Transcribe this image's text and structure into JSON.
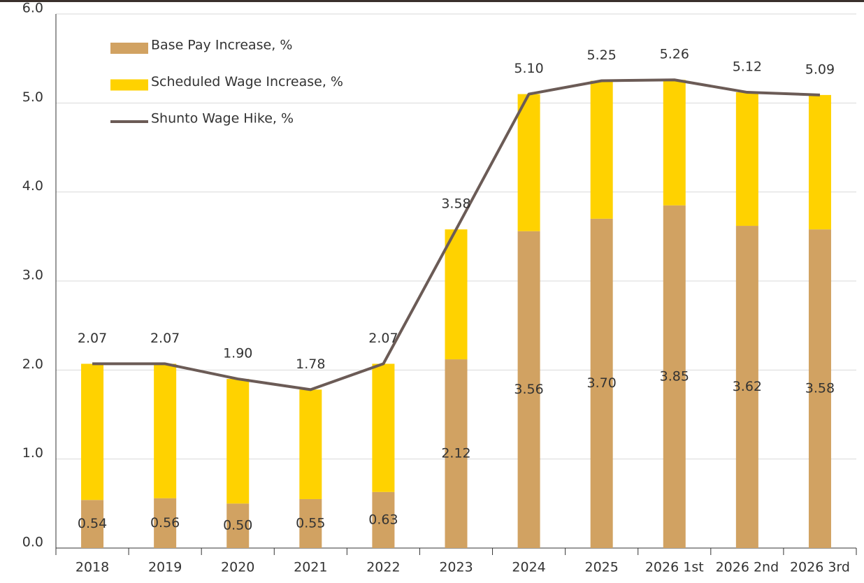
{
  "chart_data": {
    "type": "bar",
    "categories": [
      "2018",
      "2019",
      "2020",
      "2021",
      "2022",
      "2023",
      "2024",
      "2025",
      "2026 1st",
      "2026 2nd",
      "2026 3rd"
    ],
    "series": [
      {
        "name": "Base Pay Increase, %",
        "type": "bar",
        "color": "#d1a262",
        "values": [
          0.54,
          0.56,
          0.5,
          0.55,
          0.63,
          2.12,
          3.56,
          3.7,
          3.85,
          3.62,
          3.58
        ],
        "value_labels": [
          "0.54",
          "0.56",
          "0.50",
          "0.55",
          "0.63",
          "2.12",
          "3.56",
          "3.70",
          "3.85",
          "3.62",
          "3.58"
        ]
      },
      {
        "name": "Scheduled Wage Increase, %",
        "type": "bar",
        "color": "#ffd200",
        "values": [
          1.53,
          1.51,
          1.4,
          1.23,
          1.44,
          1.46,
          1.54,
          1.55,
          1.41,
          1.5,
          1.51
        ]
      },
      {
        "name": "Shunto Wage Hike, %",
        "type": "line",
        "color": "#6b5b56",
        "values": [
          2.07,
          2.07,
          1.9,
          1.78,
          2.07,
          3.58,
          5.1,
          5.25,
          5.26,
          5.12,
          5.09
        ],
        "value_labels": [
          "2.07",
          "2.07",
          "1.90",
          "1.78",
          "2.07",
          "3.58",
          "5.10",
          "5.25",
          "5.26",
          "5.12",
          "5.09"
        ]
      }
    ],
    "stacked": true,
    "ylim": [
      0,
      6
    ],
    "yticks": [
      {
        "value": 0,
        "label": "0.0"
      },
      {
        "value": 1,
        "label": "1.0"
      },
      {
        "value": 2,
        "label": "2.0"
      },
      {
        "value": 3,
        "label": "3.0"
      },
      {
        "value": 4,
        "label": "4.0"
      },
      {
        "value": 5,
        "label": "5.0"
      },
      {
        "value": 6,
        "label": "6.0"
      }
    ],
    "grid": true,
    "legend": "upper left"
  }
}
